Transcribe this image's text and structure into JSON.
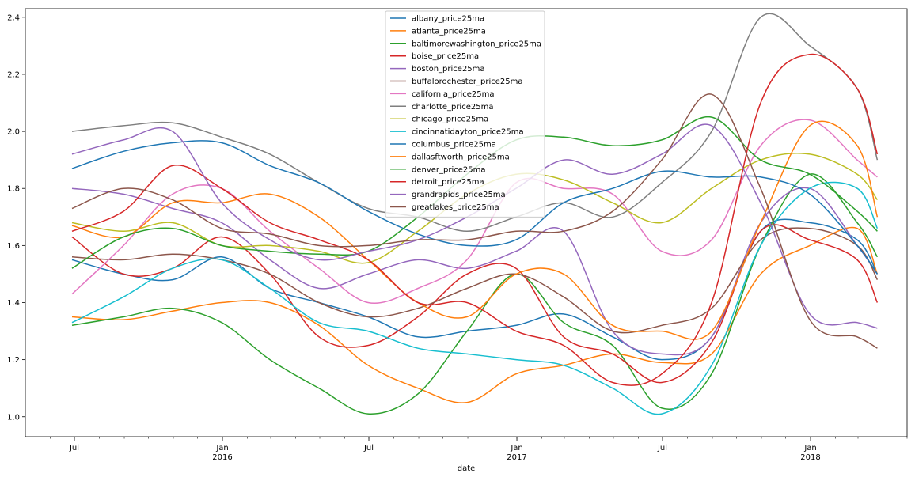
{
  "chart_data": {
    "type": "line",
    "xlabel": "date",
    "ylabel": "",
    "ylim": [
      0.93,
      2.43
    ],
    "xlim": [
      "2015-05-01",
      "2018-05-01"
    ],
    "y_ticks": [
      1.0,
      1.2,
      1.4,
      1.6,
      1.8,
      2.0,
      2.2,
      2.4
    ],
    "x_ticks": [
      {
        "date": "2015-07-01",
        "label": "Jul",
        "sublabel": ""
      },
      {
        "date": "2016-01-01",
        "label": "Jan",
        "sublabel": "2016"
      },
      {
        "date": "2016-07-01",
        "label": "Jul",
        "sublabel": ""
      },
      {
        "date": "2017-01-01",
        "label": "Jan",
        "sublabel": "2017"
      },
      {
        "date": "2017-07-01",
        "label": "Jul",
        "sublabel": ""
      },
      {
        "date": "2018-01-01",
        "label": "Jan",
        "sublabel": "2018"
      }
    ],
    "grid": false,
    "legend_position": "top-center",
    "x": [
      "2015-06-28",
      "2015-08-31",
      "2015-10-31",
      "2015-12-31",
      "2016-02-29",
      "2016-04-30",
      "2016-06-30",
      "2016-08-31",
      "2016-10-31",
      "2016-12-31",
      "2017-02-28",
      "2017-04-30",
      "2017-06-30",
      "2017-08-31",
      "2017-10-31",
      "2017-12-31",
      "2018-02-28",
      "2018-03-25"
    ],
    "series": [
      {
        "name": "albany_price25ma",
        "color": "#1f77b4",
        "values": [
          1.55,
          1.5,
          1.48,
          1.56,
          1.45,
          1.4,
          1.35,
          1.28,
          1.3,
          1.32,
          1.36,
          1.28,
          1.2,
          1.28,
          1.65,
          1.68,
          1.62,
          1.5
        ]
      },
      {
        "name": "atlanta_price25ma",
        "color": "#ff7f0e",
        "values": [
          1.35,
          1.34,
          1.37,
          1.4,
          1.4,
          1.32,
          1.18,
          1.1,
          1.05,
          1.15,
          1.18,
          1.22,
          1.19,
          1.22,
          1.5,
          1.6,
          1.66,
          1.5
        ]
      },
      {
        "name": "baltimorewashington_price25ma",
        "color": "#2ca02c",
        "values": [
          1.32,
          1.35,
          1.38,
          1.33,
          1.2,
          1.1,
          1.01,
          1.08,
          1.3,
          1.5,
          1.33,
          1.25,
          1.03,
          1.15,
          1.6,
          1.85,
          1.68,
          1.56
        ]
      },
      {
        "name": "boise_price25ma",
        "color": "#d62728",
        "values": [
          1.63,
          1.5,
          1.52,
          1.63,
          1.5,
          1.28,
          1.25,
          1.35,
          1.5,
          1.52,
          1.28,
          1.22,
          1.12,
          1.26,
          1.65,
          1.62,
          1.55,
          1.4
        ]
      },
      {
        "name": "boston_price25ma",
        "color": "#9467bd",
        "values": [
          1.8,
          1.78,
          1.73,
          1.68,
          1.55,
          1.45,
          1.5,
          1.55,
          1.52,
          1.58,
          1.65,
          1.3,
          1.22,
          1.28,
          1.68,
          1.8,
          1.6,
          1.5
        ]
      },
      {
        "name": "buffalorochester_price25ma",
        "color": "#8c564b",
        "values": [
          1.56,
          1.55,
          1.57,
          1.55,
          1.5,
          1.4,
          1.35,
          1.38,
          1.45,
          1.5,
          1.42,
          1.3,
          1.32,
          1.38,
          1.62,
          1.66,
          1.6,
          1.48
        ]
      },
      {
        "name": "california_price25ma",
        "color": "#e377c2",
        "values": [
          1.43,
          1.6,
          1.78,
          1.8,
          1.65,
          1.52,
          1.4,
          1.45,
          1.55,
          1.82,
          1.8,
          1.78,
          1.58,
          1.62,
          1.95,
          2.04,
          1.9,
          1.84
        ]
      },
      {
        "name": "charlotte_price25ma",
        "color": "#7f7f7f",
        "values": [
          2.0,
          2.02,
          2.03,
          1.98,
          1.92,
          1.82,
          1.73,
          1.7,
          1.65,
          1.7,
          1.75,
          1.7,
          1.82,
          2.0,
          2.4,
          2.3,
          2.15,
          1.9
        ]
      },
      {
        "name": "chicago_price25ma",
        "color": "#bcbd22",
        "values": [
          1.68,
          1.65,
          1.68,
          1.6,
          1.6,
          1.58,
          1.54,
          1.65,
          1.78,
          1.85,
          1.83,
          1.75,
          1.68,
          1.8,
          1.9,
          1.92,
          1.85,
          1.76
        ]
      },
      {
        "name": "cincinnatidayton_price25ma",
        "color": "#17becf",
        "values": [
          1.33,
          1.42,
          1.52,
          1.55,
          1.45,
          1.33,
          1.3,
          1.24,
          1.22,
          1.2,
          1.18,
          1.1,
          1.01,
          1.18,
          1.6,
          1.8,
          1.8,
          1.66
        ]
      },
      {
        "name": "columbus_price25ma",
        "color": "#1f77b4",
        "values": [
          1.87,
          1.93,
          1.96,
          1.96,
          1.88,
          1.82,
          1.72,
          1.64,
          1.6,
          1.62,
          1.75,
          1.8,
          1.86,
          1.84,
          1.84,
          1.78,
          1.6,
          1.5
        ]
      },
      {
        "name": "dallasftworth_price25ma",
        "color": "#ff7f0e",
        "values": [
          1.67,
          1.63,
          1.75,
          1.75,
          1.78,
          1.7,
          1.55,
          1.4,
          1.35,
          1.5,
          1.5,
          1.32,
          1.3,
          1.3,
          1.68,
          2.02,
          1.95,
          1.7
        ]
      },
      {
        "name": "denver_price25ma",
        "color": "#2ca02c",
        "values": [
          1.52,
          1.63,
          1.66,
          1.6,
          1.58,
          1.57,
          1.58,
          1.7,
          1.85,
          1.97,
          1.98,
          1.95,
          1.97,
          2.05,
          1.9,
          1.85,
          1.72,
          1.65
        ]
      },
      {
        "name": "detroit_price25ma",
        "color": "#d62728",
        "values": [
          1.65,
          1.72,
          1.88,
          1.8,
          1.68,
          1.62,
          1.55,
          1.4,
          1.4,
          1.3,
          1.25,
          1.12,
          1.15,
          1.4,
          2.1,
          2.27,
          2.15,
          1.92
        ]
      },
      {
        "name": "grandrapids_price25ma",
        "color": "#9467bd",
        "values": [
          1.92,
          1.97,
          2.0,
          1.75,
          1.62,
          1.55,
          1.58,
          1.62,
          1.7,
          1.8,
          1.9,
          1.85,
          1.92,
          2.02,
          1.75,
          1.36,
          1.33,
          1.31
        ]
      },
      {
        "name": "greatlakes_price25ma",
        "color": "#8c564b",
        "values": [
          1.73,
          1.8,
          1.76,
          1.66,
          1.64,
          1.6,
          1.6,
          1.62,
          1.62,
          1.65,
          1.65,
          1.72,
          1.9,
          2.13,
          1.8,
          1.34,
          1.28,
          1.24
        ]
      }
    ]
  }
}
